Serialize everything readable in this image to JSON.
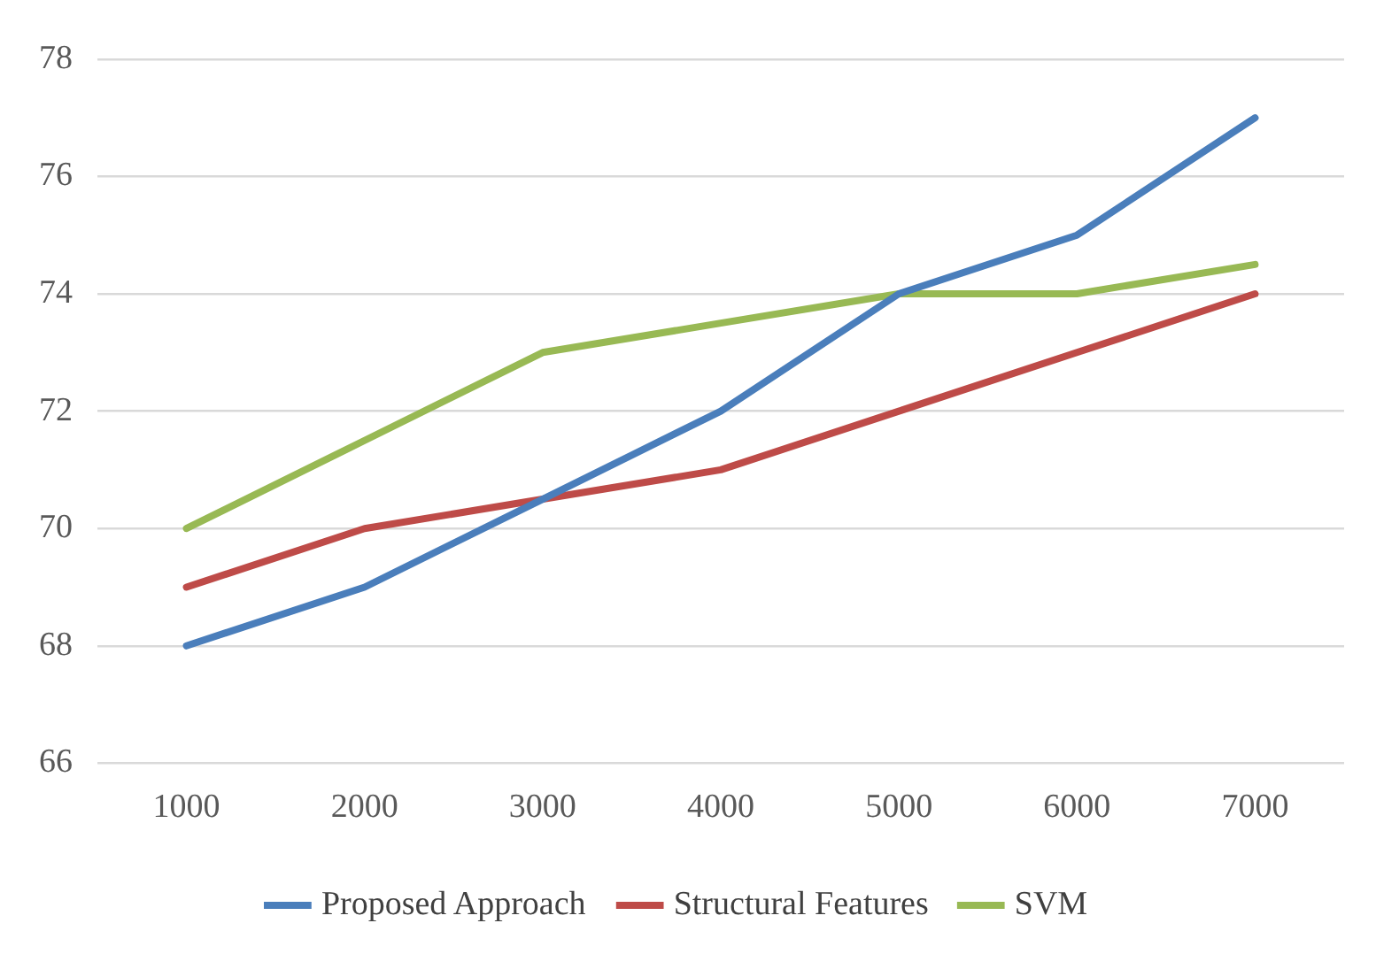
{
  "chart_data": {
    "type": "line",
    "categories": [
      "1000",
      "2000",
      "3000",
      "4000",
      "5000",
      "6000",
      "7000"
    ],
    "series": [
      {
        "name": "Proposed Approach",
        "color": "#4a7ebb",
        "values": [
          68,
          69,
          70.5,
          72,
          74,
          75,
          77
        ]
      },
      {
        "name": "Structural Features",
        "color": "#be4b48",
        "values": [
          69,
          70,
          70.5,
          71,
          72,
          73,
          74
        ]
      },
      {
        "name": "SVM",
        "color": "#98b954",
        "values": [
          70,
          71.5,
          73,
          73.5,
          74,
          74,
          74.5
        ]
      }
    ],
    "ylim": [
      66,
      78
    ],
    "yticks": [
      66,
      68,
      70,
      72,
      74,
      76,
      78
    ],
    "grid": "y",
    "legend": "bottom",
    "marker": "none",
    "line_style": "solid"
  }
}
